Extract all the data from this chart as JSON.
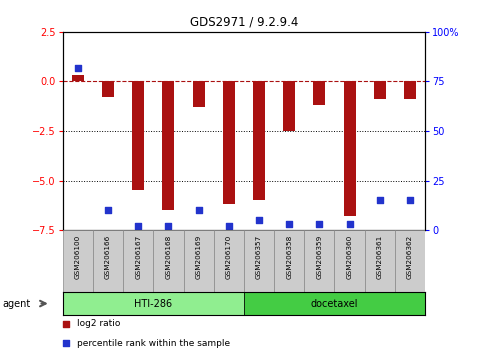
{
  "title": "GDS2971 / 9.2.9.4",
  "samples": [
    "GSM206100",
    "GSM206166",
    "GSM206167",
    "GSM206168",
    "GSM206169",
    "GSM206170",
    "GSM206357",
    "GSM206358",
    "GSM206359",
    "GSM206360",
    "GSM206361",
    "GSM206362"
  ],
  "log2_ratio": [
    0.3,
    -0.8,
    -5.5,
    -6.5,
    -1.3,
    -6.2,
    -6.0,
    -2.5,
    -1.2,
    -6.8,
    -0.9,
    -0.9
  ],
  "percentile_rank": [
    82,
    10,
    2,
    2,
    10,
    2,
    5,
    3,
    3,
    3,
    15,
    15
  ],
  "groups": [
    {
      "label": "HTI-286",
      "color": "#90ee90",
      "dark_color": "#55cc55",
      "start": 0,
      "end": 6
    },
    {
      "label": "docetaxel",
      "color": "#44cc44",
      "dark_color": "#33aa33",
      "start": 6,
      "end": 12
    }
  ],
  "group_row_label": "agent",
  "ylim_left": [
    -7.5,
    2.5
  ],
  "yticks_left": [
    2.5,
    0.0,
    -2.5,
    -5.0,
    -7.5
  ],
  "ylim_right": [
    0,
    100
  ],
  "yticks_right": [
    0,
    25,
    50,
    75,
    100
  ],
  "bar_color": "#aa1111",
  "dot_color": "#2233cc",
  "hline_y": 0,
  "dotted_lines": [
    -2.5,
    -5.0
  ],
  "background_color": "#ffffff",
  "plot_bg_color": "#ffffff",
  "legend_items": [
    {
      "color": "#aa1111",
      "label": "log2 ratio"
    },
    {
      "color": "#2233cc",
      "label": "percentile rank within the sample"
    }
  ],
  "bar_width": 0.4,
  "label_box_color": "#cccccc",
  "label_box_edge": "#888888"
}
